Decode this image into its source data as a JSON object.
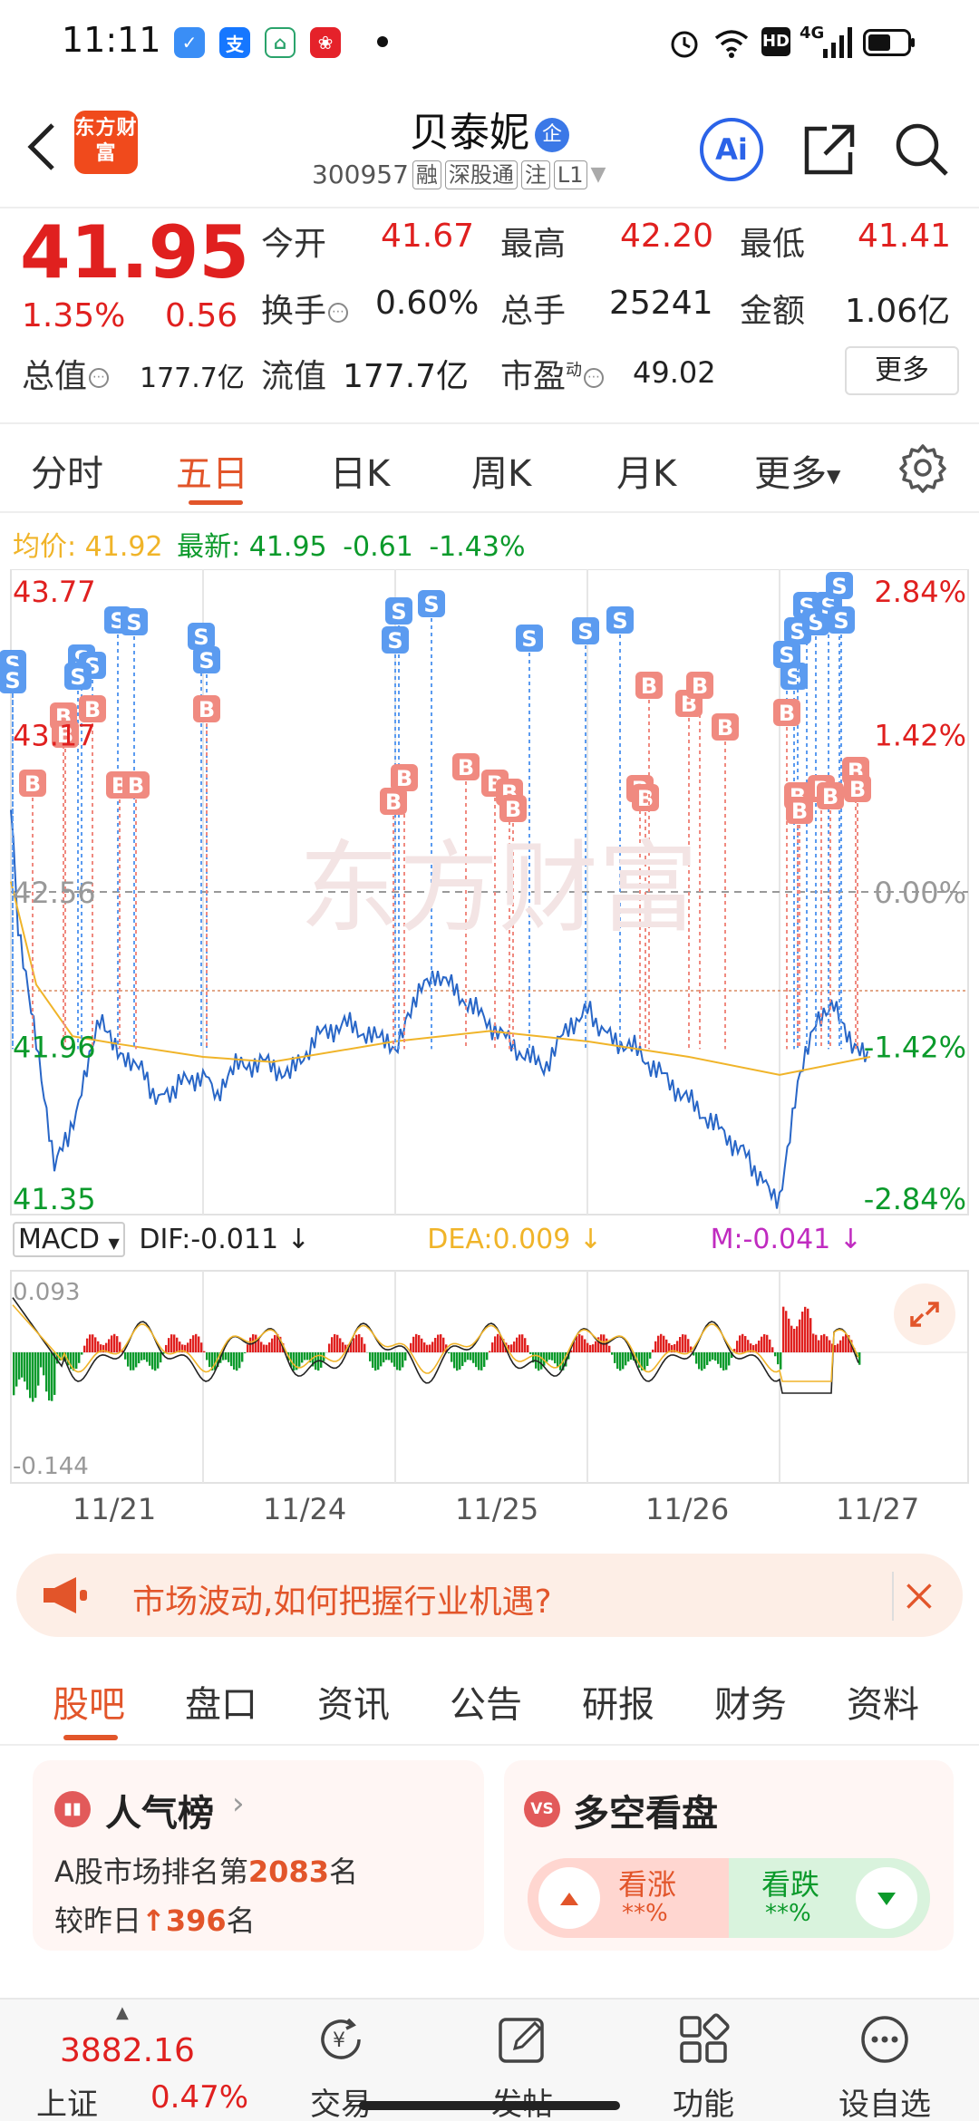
{
  "status_bar": {
    "time": "11:11",
    "network": "4G"
  },
  "header": {
    "logo_text": "东方财富",
    "stock_name": "贝泰妮",
    "enterprise_badge": "企",
    "code": "300957",
    "tags": [
      "融",
      "深股通",
      "注",
      "L1"
    ],
    "ai_label": "Ai"
  },
  "quote": {
    "price": "41.95",
    "change_pct": "1.35%",
    "change": "0.56",
    "rows": [
      [
        {
          "label": "今开",
          "value": "41.67",
          "color": "red"
        },
        {
          "label": "最高",
          "value": "42.20",
          "color": "red"
        },
        {
          "label": "最低",
          "value": "41.41",
          "color": "red"
        }
      ],
      [
        {
          "label": "换手",
          "value": "0.60%",
          "color": "dark"
        },
        {
          "label": "总手",
          "value": "25241",
          "color": "dark"
        },
        {
          "label": "金额",
          "value": "1.06亿",
          "color": "dark"
        }
      ]
    ],
    "market_cap_label": "总值",
    "market_cap_value": "177.7亿",
    "float_cap_label": "流值",
    "float_cap_value": "177.7亿",
    "pe_label": "市盈",
    "pe_sup": "动",
    "pe_value": "49.02",
    "more_label": "更多"
  },
  "period_tabs": [
    "分时",
    "五日",
    "日K",
    "周K",
    "月K",
    "更多"
  ],
  "period_active": 1,
  "legend": {
    "avg_label": "均价:",
    "avg_value": "41.92",
    "latest_label": "最新:",
    "latest_value": "41.95",
    "latest_change": "-0.61",
    "latest_pct": "-1.43%"
  },
  "chart_data": {
    "type": "line",
    "x_dates": [
      "11/21",
      "11/24",
      "11/25",
      "11/26",
      "11/27"
    ],
    "y_ticks_left": [
      "43.77",
      "43.17",
      "42.56",
      "41.96",
      "41.35"
    ],
    "y_ticks_right": [
      "2.84%",
      "1.42%",
      "0.00%",
      "-1.42%",
      "-2.84%"
    ],
    "ylim": [
      41.35,
      43.77
    ],
    "reference_price": 42.56,
    "markers": [
      "S",
      "B"
    ]
  },
  "macd": {
    "select_label": "MACD",
    "dif": "DIF:-0.011",
    "dea": "DEA:0.009",
    "m": "M:-0.041",
    "y_top": "0.093",
    "y_bottom": "-0.144"
  },
  "banner": {
    "text": "市场波动,如何把握行业机遇?"
  },
  "content_tabs": [
    "股吧",
    "盘口",
    "资讯",
    "公告",
    "研报",
    "财务",
    "资料"
  ],
  "content_active": 0,
  "popularity_card": {
    "title": "人气榜",
    "line1_pre": "A股市场排名第",
    "rank": "2083",
    "line1_post": "名",
    "line2_pre": "较昨日",
    "delta": "396",
    "line2_post": "名"
  },
  "sentiment_card": {
    "title": "多空看盘",
    "icon_text": "VS",
    "bull_label": "看涨",
    "bull_value": "**%",
    "bear_label": "看跌",
    "bear_value": "**%"
  },
  "bottom_nav": {
    "index_value": "3882.16",
    "index_name": "上证",
    "index_pct": "0.47%",
    "items": [
      "交易",
      "发帖",
      "功能",
      "设自选"
    ]
  },
  "colors": {
    "accent": "#e2552a",
    "up": "#e0201f",
    "down": "#0b9a2b",
    "avg_line": "#f0b429",
    "marker_b": "#f08a80",
    "marker_s": "#5b9bf0"
  }
}
